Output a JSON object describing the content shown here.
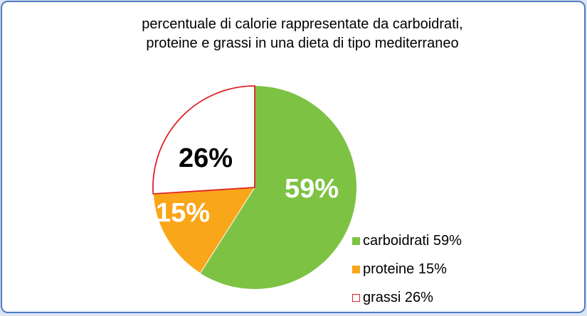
{
  "frame": {
    "background_color": "#DCE6F3",
    "card_background": "#FFFFFF",
    "border_color": "#4F7BC1"
  },
  "chart_data": {
    "type": "pie",
    "title": "percentuale di calorie rappresentate da carboidrati, proteine e grassi in una dieta di tipo mediterraneo",
    "title_lines": [
      "percentuale di calorie rappresentate da carboidrati,",
      "proteine e grassi in una dieta di tipo mediterraneo"
    ],
    "categories": [
      "carboidrati",
      "proteine",
      "grassi"
    ],
    "values": [
      59,
      15,
      26
    ],
    "unit": "%",
    "start_angle_deg": 0,
    "direction": "clockwise",
    "legend_position": "right-bottom",
    "slices": [
      {
        "name": "carboidrati",
        "value": 59,
        "label": "59%",
        "color": "#7DC242",
        "label_color": "#FFFFFF"
      },
      {
        "name": "proteine",
        "value": 15,
        "label": "15%",
        "color": "#FAA61A",
        "label_color": "#FFFFFF"
      },
      {
        "name": "grassi",
        "value": 26,
        "label": "26%",
        "color": "#FFFFFF",
        "border_color": "#E02227",
        "label_color": "#000000"
      }
    ],
    "legend": [
      {
        "label": "carboidrati 59%"
      },
      {
        "label": "proteine 15%"
      },
      {
        "label": "grassi 26%"
      }
    ]
  }
}
